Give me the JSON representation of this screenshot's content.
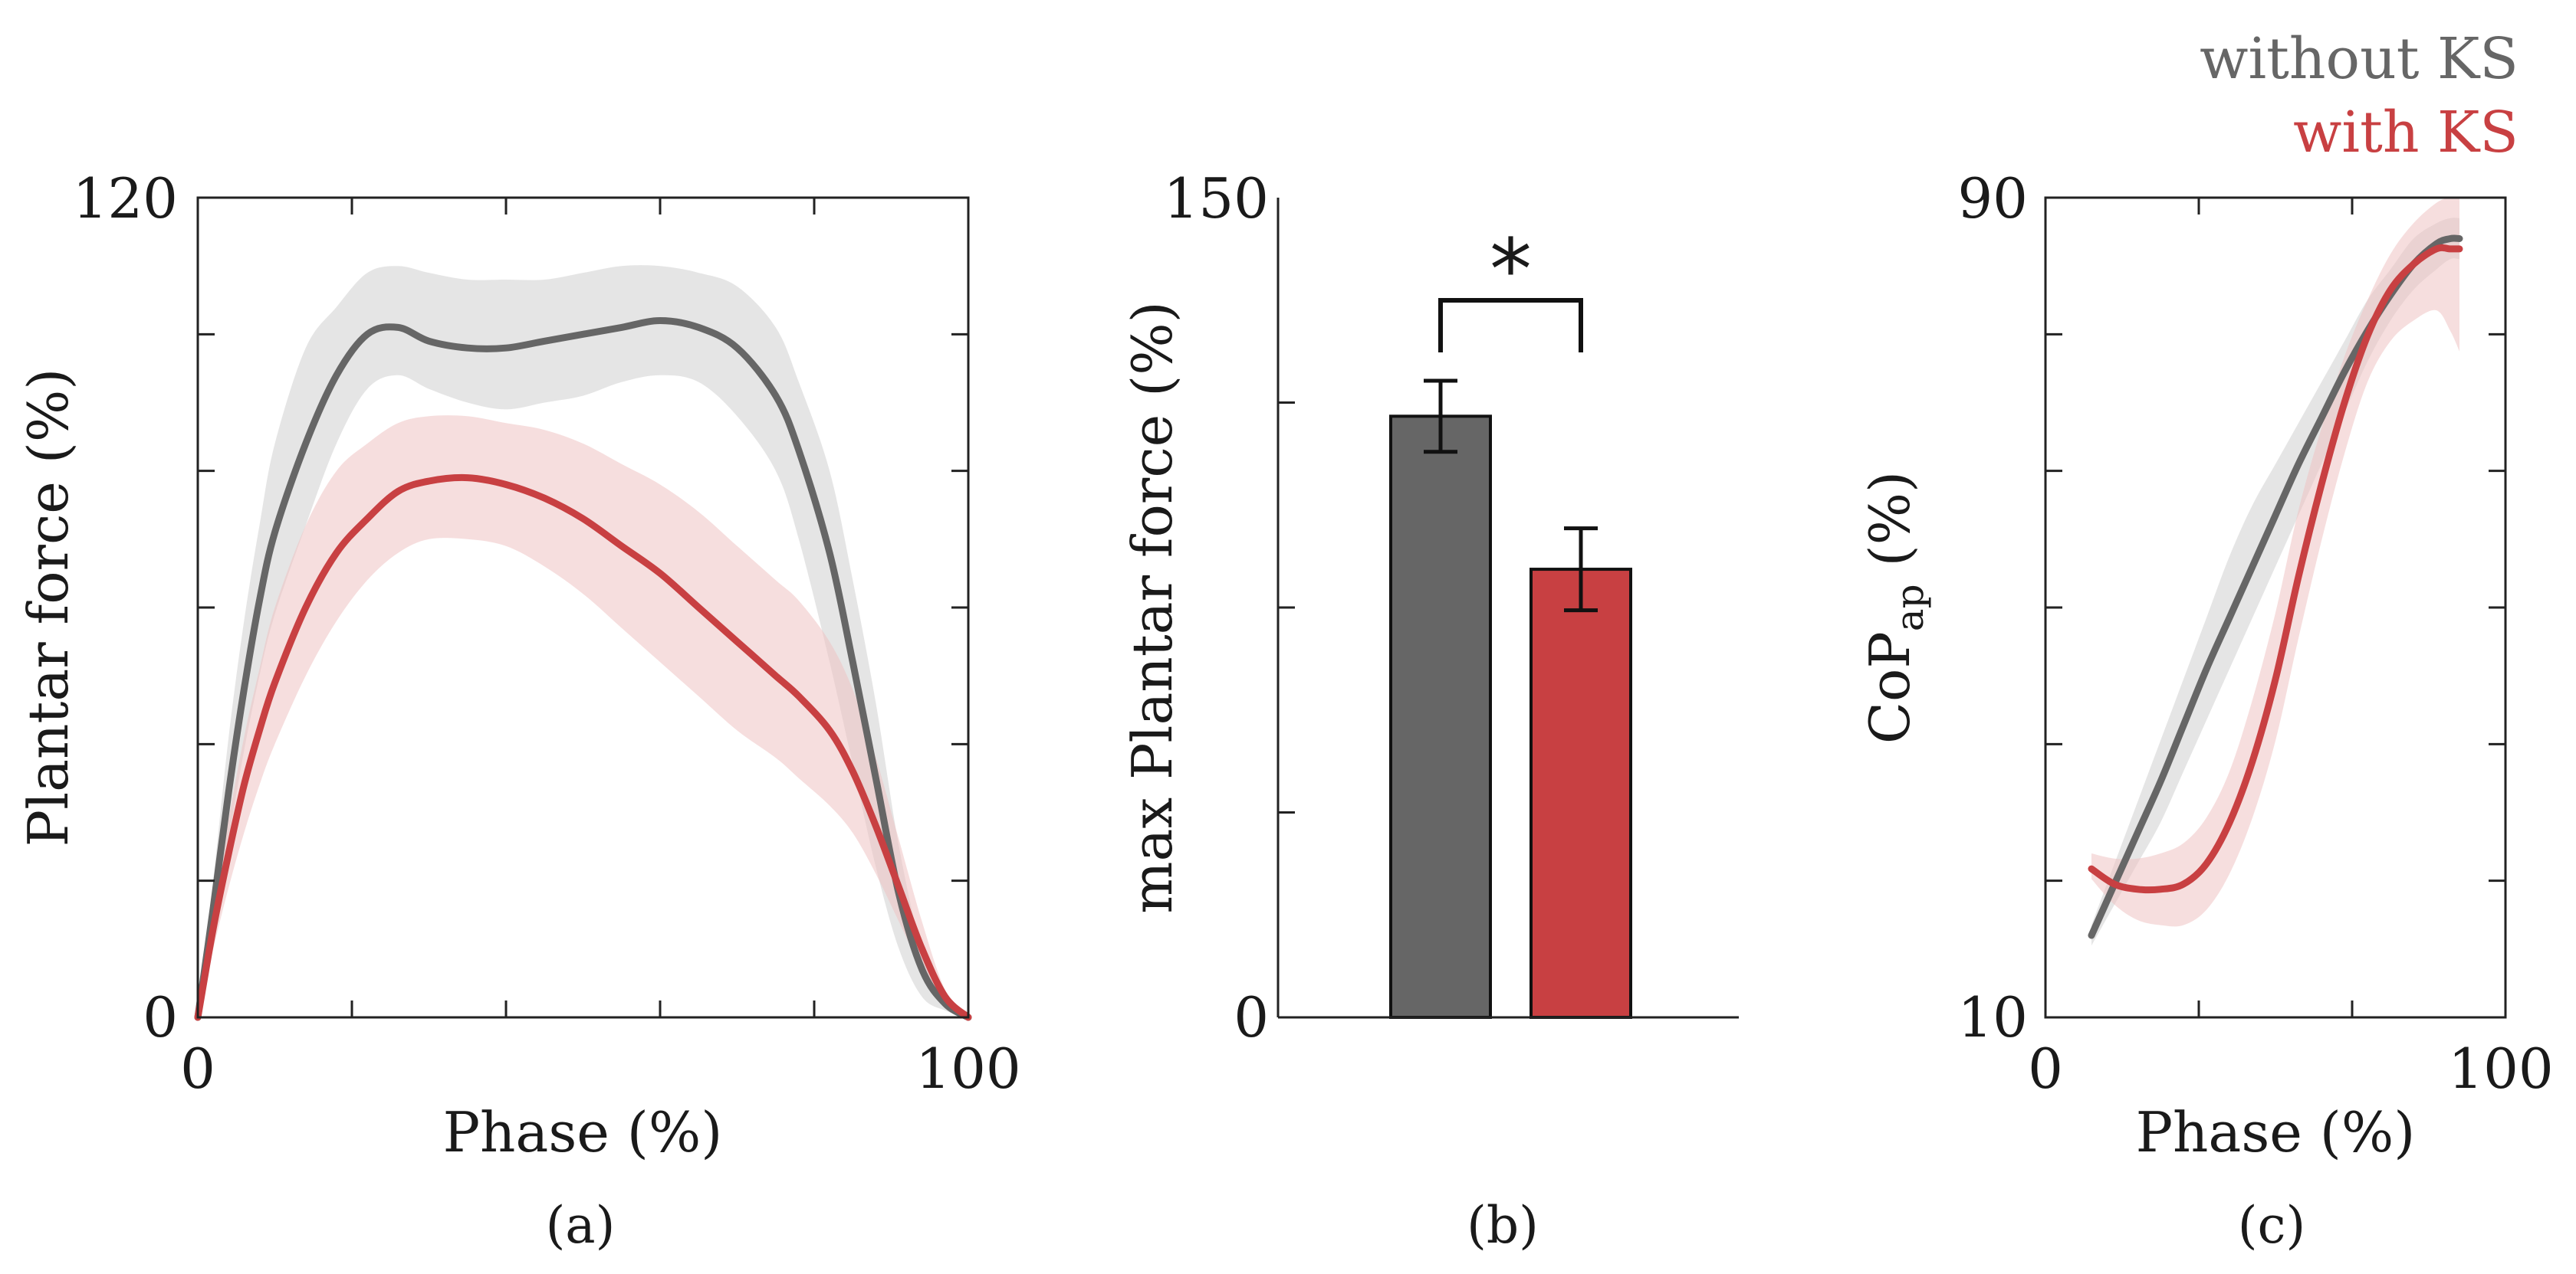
{
  "legend": {
    "without": {
      "label": "without KS",
      "color": "#666666"
    },
    "with": {
      "label": "with KS",
      "color": "#c84042"
    }
  },
  "chart_data": [
    {
      "type": "line",
      "panel_label": "(a)",
      "xlabel": "Phase (%)",
      "ylabel": "Plantar force (%)",
      "xlim": [
        0,
        100
      ],
      "ylim": [
        0,
        120
      ],
      "xticks": [
        "0",
        "100"
      ],
      "yticks": [
        "0",
        "120"
      ],
      "series": [
        {
          "name": "without KS",
          "color": "#666666",
          "x": [
            0,
            2,
            4,
            6,
            8,
            10,
            14,
            18,
            22,
            26,
            30,
            35,
            40,
            45,
            50,
            55,
            60,
            65,
            70,
            75,
            78,
            82,
            85,
            88,
            91,
            94,
            97,
            100
          ],
          "y": [
            0,
            16,
            33,
            48,
            61,
            71,
            84,
            94,
            100,
            101,
            99,
            98,
            98,
            99,
            100,
            101,
            102,
            101,
            98,
            91,
            83,
            68,
            52,
            35,
            18,
            7,
            2,
            0
          ],
          "lo": [
            0,
            12,
            26,
            39,
            50,
            59,
            72,
            84,
            92,
            94,
            92,
            90,
            89,
            90,
            91,
            93,
            94,
            93,
            88,
            80,
            70,
            52,
            37,
            22,
            10,
            3,
            1,
            0
          ],
          "hi": [
            0,
            20,
            41,
            58,
            72,
            84,
            98,
            104,
            109,
            110,
            109,
            108,
            108,
            108,
            109,
            110,
            110,
            109,
            107,
            101,
            93,
            80,
            64,
            46,
            25,
            10,
            3,
            0
          ]
        },
        {
          "name": "with KS",
          "color": "#c84042",
          "x": [
            0,
            2,
            4,
            6,
            8,
            10,
            14,
            18,
            22,
            26,
            30,
            35,
            40,
            45,
            50,
            55,
            60,
            65,
            70,
            75,
            78,
            82,
            85,
            88,
            91,
            94,
            97,
            100
          ],
          "y": [
            0,
            13,
            24,
            34,
            42,
            49,
            60,
            68,
            73,
            77,
            78.5,
            79,
            78,
            76,
            73,
            69,
            65,
            60,
            55,
            50,
            47,
            42,
            36,
            28,
            19,
            10,
            3,
            0
          ],
          "lo": [
            0,
            10,
            19,
            27,
            34,
            40,
            50,
            58,
            64,
            68,
            70,
            70,
            69,
            66,
            62,
            57,
            52,
            47,
            42,
            38,
            35,
            31,
            27,
            21,
            14,
            7,
            2,
            0
          ],
          "hi": [
            0,
            16,
            29,
            41,
            51,
            60,
            72,
            80,
            84,
            87,
            88,
            88,
            87,
            86,
            84,
            81,
            78,
            74,
            69,
            64,
            61,
            55,
            48,
            38,
            26,
            14,
            4,
            0
          ]
        }
      ]
    },
    {
      "type": "bar",
      "panel_label": "(b)",
      "xlabel": "",
      "ylabel": "max Plantar force (%)",
      "ylim": [
        0,
        150
      ],
      "yticks": [
        "0",
        "150"
      ],
      "categories": [
        "without KS",
        "with KS"
      ],
      "values": [
        110,
        82
      ],
      "errors": [
        6.5,
        7.5
      ],
      "colors": [
        "#666666",
        "#c84042"
      ],
      "significance": "*"
    },
    {
      "type": "line",
      "panel_label": "(c)",
      "xlabel": "Phase (%)",
      "ylabel": "CoP",
      "ylabel_sub": "ap",
      "ylabel_suffix": " (%)",
      "xlim": [
        0,
        100
      ],
      "ylim": [
        10,
        90
      ],
      "xticks": [
        "0",
        "100"
      ],
      "yticks": [
        "10",
        "90"
      ],
      "series": [
        {
          "name": "without KS",
          "color": "#666666",
          "x": [
            10,
            15,
            20,
            25,
            30,
            35,
            40,
            45,
            50,
            55,
            60,
            65,
            70,
            75,
            80,
            85,
            88,
            90
          ],
          "y": [
            18,
            23,
            28,
            33,
            38.5,
            44,
            49,
            54,
            59,
            64,
            68.5,
            73,
            77,
            80.5,
            83.5,
            85.5,
            86,
            86
          ],
          "lo": [
            17,
            21,
            25,
            29,
            34,
            39,
            44,
            49,
            54,
            59,
            64,
            69,
            74,
            78,
            81,
            83,
            84,
            84
          ],
          "hi": [
            19,
            25,
            31,
            37,
            43,
            49,
            55,
            60,
            64,
            68,
            72,
            76,
            80,
            83,
            86,
            87.5,
            88,
            88
          ]
        },
        {
          "name": "with KS",
          "color": "#c84042",
          "x": [
            10,
            15,
            20,
            25,
            30,
            35,
            40,
            45,
            50,
            55,
            60,
            65,
            70,
            75,
            80,
            85,
            88,
            90
          ],
          "y": [
            24.5,
            23,
            22.5,
            22.5,
            23,
            25,
            29,
            35,
            43,
            53,
            62,
            70,
            76.5,
            81,
            83.5,
            85,
            85,
            85
          ],
          "lo": [
            23.5,
            21,
            19.5,
            19,
            19,
            20.5,
            24,
            29.5,
            37,
            47,
            56.5,
            65,
            72,
            76,
            78,
            79,
            77,
            75
          ],
          "hi": [
            26,
            25.5,
            25.5,
            26,
            27,
            29.5,
            34,
            41,
            49.5,
            59.5,
            67.5,
            74.5,
            80,
            84.5,
            87.5,
            89.5,
            90,
            90
          ]
        }
      ]
    }
  ]
}
